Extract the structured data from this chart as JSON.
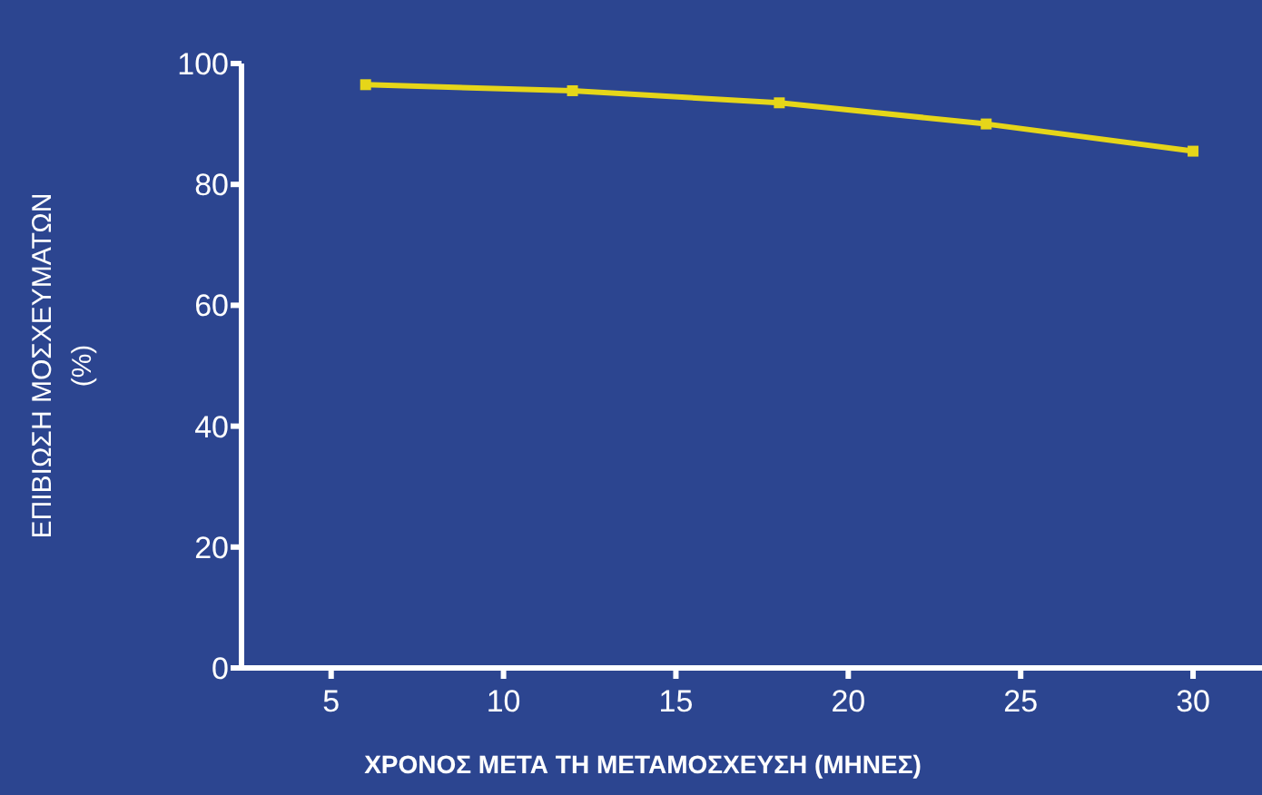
{
  "chart_data": {
    "type": "line",
    "xlabel": "ΧΡΟΝΟΣ ΜΕΤΑ ΤΗ ΜΕΤΑΜΟΣΧΕΥΣΗ (ΜΗΝΕΣ)",
    "ylabel": "ΕΠΙΒΙΩΣΗ ΜΟΣΧΕΥΜΑΤΩΝ\n(%)",
    "x": [
      6,
      12,
      18,
      24,
      30
    ],
    "series": [
      {
        "color": "#e6d619",
        "values": [
          96.5,
          95.5,
          93.5,
          90,
          85.5
        ]
      }
    ],
    "xlim": [
      2.4,
      32
    ],
    "xticks": [
      5,
      10,
      15,
      20,
      25,
      30
    ],
    "ylim": [
      0,
      100
    ],
    "yticks": [
      0,
      20,
      40,
      60,
      80,
      100
    ],
    "grid": false,
    "marker": "square",
    "line_style": "solid"
  }
}
